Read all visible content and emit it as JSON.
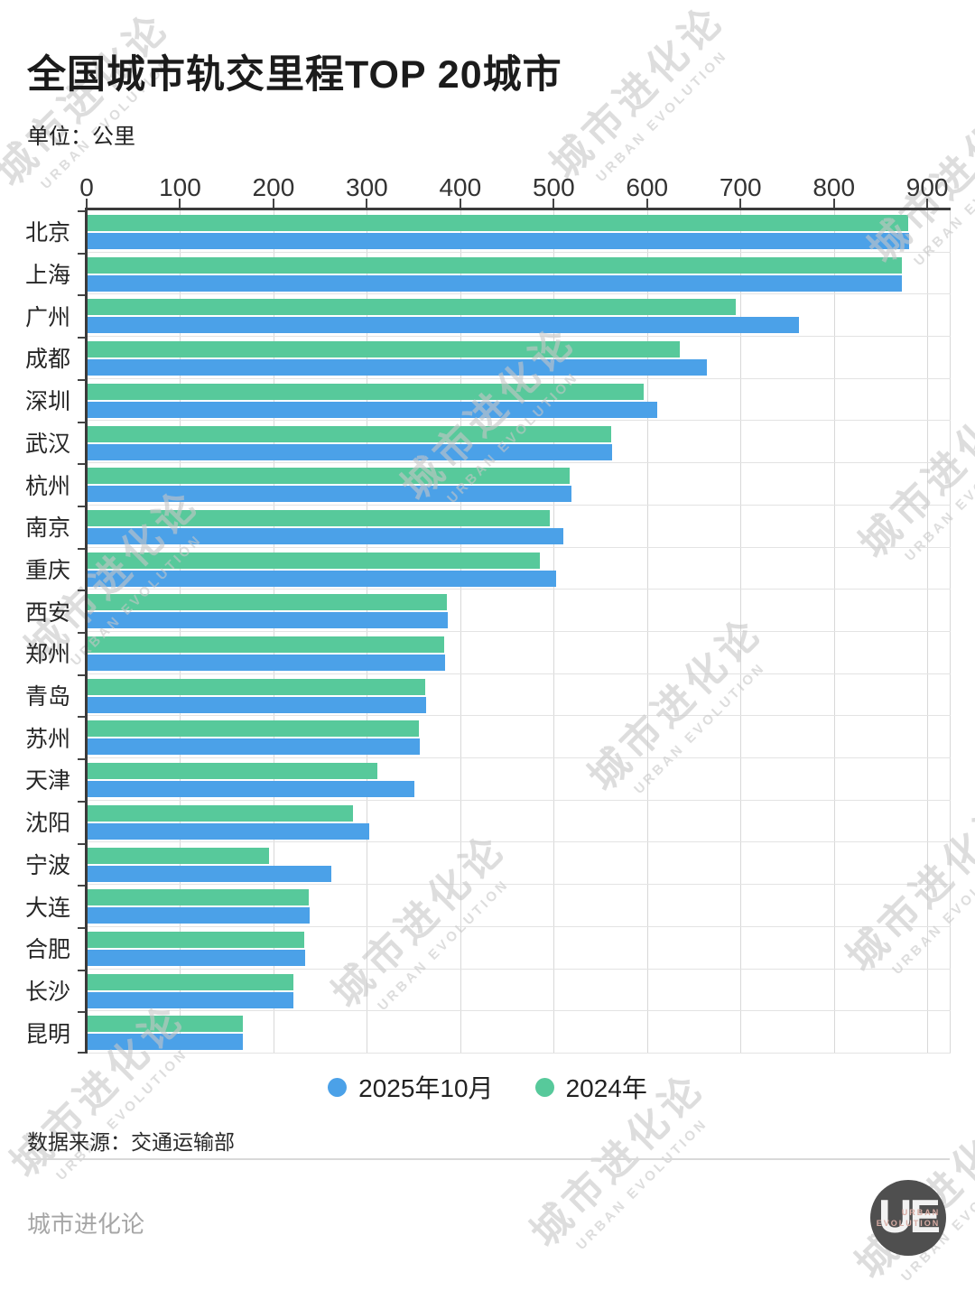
{
  "title": "全国城市轨交里程TOP 20城市",
  "unit_label": "单位：公里",
  "source": "数据来源：交通运输部",
  "footer": {
    "brand": "城市进化论",
    "logo_monogram": "UE",
    "logo_line1": "URBAN",
    "logo_line2": "EVOLUTION"
  },
  "watermark": {
    "line1": "城市进化论",
    "line2": "URBAN EVOLUTION"
  },
  "legend": {
    "items": [
      {
        "label": "2025年10月",
        "color": "#4BA1E8"
      },
      {
        "label": "2024年",
        "color": "#57C99B"
      }
    ]
  },
  "chart_data": {
    "type": "bar",
    "orientation": "horizontal",
    "title": "全国城市轨交里程TOP 20城市",
    "unit": "公里",
    "categories": [
      "北京",
      "上海",
      "广州",
      "成都",
      "深圳",
      "武汉",
      "杭州",
      "南京",
      "重庆",
      "西安",
      "郑州",
      "青岛",
      "苏州",
      "天津",
      "沈阳",
      "宁波",
      "大连",
      "合肥",
      "长沙",
      "昆明"
    ],
    "series": [
      {
        "name": "2025年10月",
        "color": "#4BA1E8",
        "values": [
          880,
          872,
          762,
          663,
          610,
          562,
          518,
          509,
          502,
          386,
          383,
          362,
          356,
          350,
          302,
          261,
          238,
          233,
          220,
          166
        ]
      },
      {
        "name": "2024年",
        "color": "#57C99B",
        "values": [
          879,
          872,
          694,
          634,
          595,
          561,
          516,
          495,
          484,
          385,
          382,
          361,
          355,
          310,
          284,
          194,
          237,
          232,
          220,
          166
        ]
      }
    ],
    "bar_order_top_to_bottom": [
      "2024年",
      "2025年10月"
    ],
    "x_ticks": [
      0,
      100,
      200,
      300,
      400,
      500,
      600,
      700,
      800,
      900
    ],
    "xlim": [
      0,
      925
    ],
    "grid": true,
    "legend_position": "bottom"
  }
}
